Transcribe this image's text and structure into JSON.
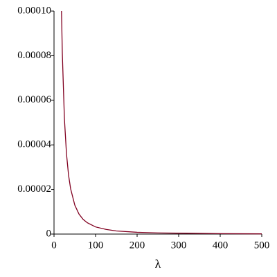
{
  "chart_data": {
    "type": "line",
    "x_label": "λ",
    "xlim": [
      0,
      500
    ],
    "xticks": [
      0,
      100,
      200,
      300,
      400,
      500
    ],
    "ylim": [
      0,
      0.0001
    ],
    "yticks": [
      0,
      {
        "value": 2e-05,
        "label": "0.00002"
      },
      {
        "value": 4e-05,
        "label": "0.00004"
      },
      {
        "value": 6e-05,
        "label": "0.00006"
      },
      {
        "value": 8e-05,
        "label": "0.00008"
      },
      {
        "value": 0.0001,
        "label": "0.00010"
      }
    ],
    "series": [
      {
        "color": "#800020",
        "x": [
          18,
          20,
          25,
          30,
          35,
          40,
          50,
          60,
          70,
          80,
          100,
          125,
          150,
          200,
          250,
          300,
          400,
          500
        ],
        "values": [
          0.0001,
          8.1e-05,
          5.18e-05,
          3.6e-05,
          2.64e-05,
          2.03e-05,
          1.3e-05,
          9e-06,
          6.6e-06,
          5.1e-06,
          3.2e-06,
          2.1e-06,
          1.4e-06,
          8e-07,
          5e-07,
          4e-07,
          2e-07,
          1e-07
        ]
      }
    ]
  }
}
